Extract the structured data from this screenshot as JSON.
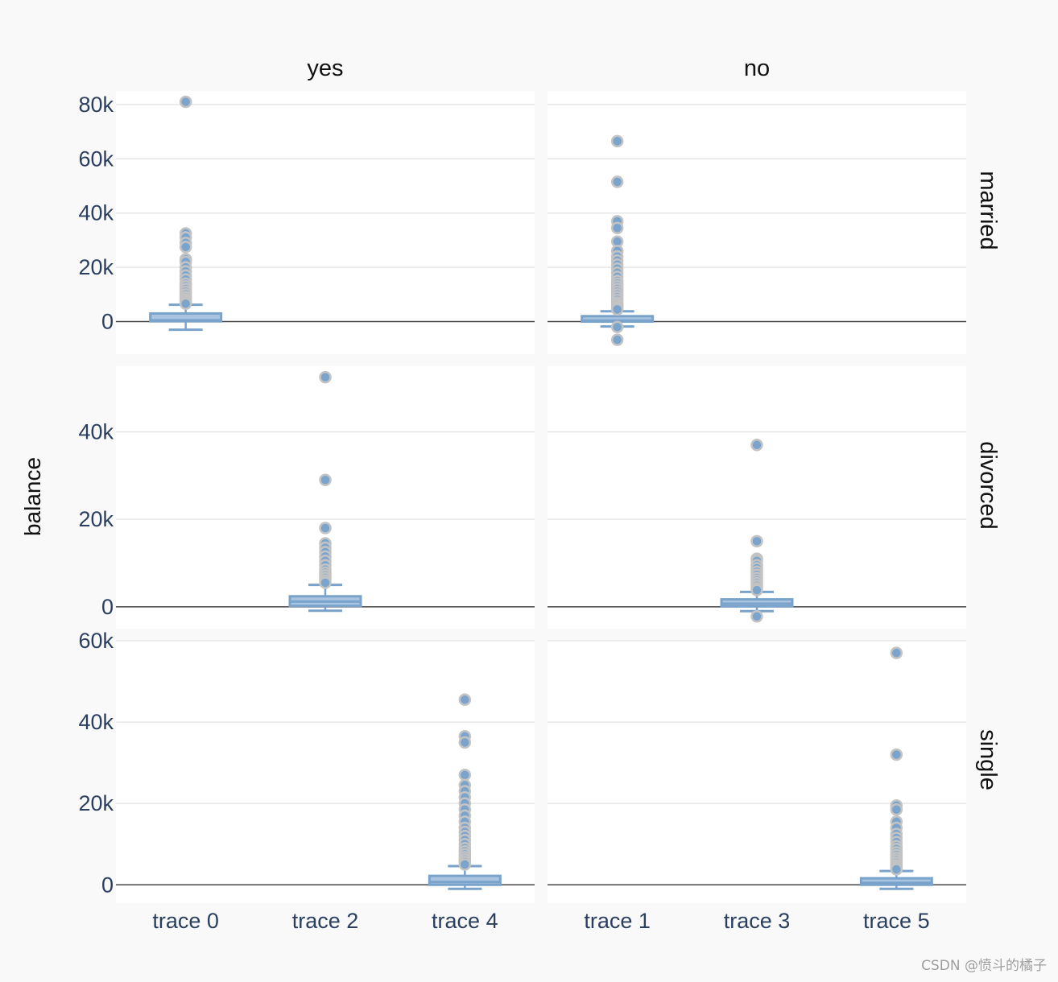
{
  "chart_data": {
    "type": "box",
    "ylabel": "balance",
    "col_labels": [
      "yes",
      "no"
    ],
    "row_labels": [
      "married",
      "divorced",
      "single"
    ],
    "colors": {
      "box_fill": "#a9c4e0",
      "box_line": "#7aa3cb",
      "outlier_fill": "#7ba4cd",
      "outlier_line": "#c3c3c3",
      "grid": "#e6e6e6",
      "zeroline": "#444444",
      "plot_bg": "#ffffff",
      "paper_bg": "#f9f9f9"
    },
    "rows": [
      {
        "name": "married",
        "ylim": [
          -12000,
          85000
        ],
        "ticks": [
          0,
          20000,
          40000,
          60000,
          80000
        ],
        "tick_labels": [
          "0",
          "20k",
          "40k",
          "60k",
          "80k"
        ]
      },
      {
        "name": "divorced",
        "ylim": [
          -5000,
          55000
        ],
        "ticks": [
          0,
          20000,
          40000
        ],
        "tick_labels": [
          "0",
          "20k",
          "40k"
        ]
      },
      {
        "name": "single",
        "ylim": [
          -4500,
          60000
        ],
        "ticks": [
          0,
          20000,
          40000,
          60000
        ],
        "tick_labels": [
          "0",
          "20k",
          "40k",
          "60k"
        ]
      }
    ],
    "columns": [
      {
        "name": "yes",
        "categories": [
          "trace 0",
          "trace 2",
          "trace 4"
        ]
      },
      {
        "name": "no",
        "categories": [
          "trace 1",
          "trace 3",
          "trace 5"
        ]
      }
    ],
    "series": [
      {
        "name": "trace 0",
        "row": 0,
        "col": 0,
        "pos": 0,
        "lower_fence": -3000,
        "q1": 100,
        "median": 500,
        "q3": 3000,
        "upper_fence": 6200,
        "outliers": [
          81000,
          32500,
          31000,
          29000,
          27500,
          23000,
          22000,
          20000,
          18500,
          17000,
          15500,
          14000,
          13000,
          12000,
          11000,
          10000,
          9000,
          8200,
          7500,
          7000,
          6600
        ]
      },
      {
        "name": "trace 1",
        "row": 0,
        "col": 1,
        "pos": 0,
        "lower_fence": -1800,
        "q1": 0,
        "median": 400,
        "q3": 2000,
        "upper_fence": 3800,
        "outliers": [
          66500,
          51500,
          37000,
          34500,
          29500,
          26000,
          24000,
          22500,
          21000,
          19500,
          18000,
          16500,
          15000,
          14000,
          13000,
          12000,
          11000,
          10000,
          9000,
          8000,
          7000,
          6200,
          5500,
          5000,
          4500,
          -2000,
          -6700
        ]
      },
      {
        "name": "trace 2",
        "row": 1,
        "col": 0,
        "pos": 1,
        "lower_fence": -900,
        "q1": 200,
        "median": 1200,
        "q3": 2400,
        "upper_fence": 5000,
        "outliers": [
          52500,
          29000,
          18000,
          14500,
          13500,
          12500,
          11500,
          10500,
          9500,
          8500,
          7800,
          7200,
          6600,
          6000,
          5500
        ]
      },
      {
        "name": "trace 3",
        "row": 1,
        "col": 1,
        "pos": 1,
        "lower_fence": -1000,
        "q1": 100,
        "median": 700,
        "q3": 1700,
        "upper_fence": 3400,
        "outliers": [
          37000,
          15000,
          11000,
          10500,
          9500,
          8800,
          8000,
          7300,
          6600,
          6000,
          5400,
          4800,
          4200,
          3800,
          -2200
        ]
      },
      {
        "name": "trace 4",
        "row": 2,
        "col": 0,
        "pos": 2,
        "lower_fence": -1000,
        "q1": 0,
        "median": 700,
        "q3": 2200,
        "upper_fence": 4600,
        "outliers": [
          45500,
          36500,
          35000,
          27000,
          24500,
          23000,
          21500,
          20000,
          18500,
          17000,
          15500,
          14000,
          13000,
          12000,
          11000,
          10000,
          9000,
          8200,
          7500,
          6800,
          6200,
          5600,
          5000
        ]
      },
      {
        "name": "trace 5",
        "row": 2,
        "col": 1,
        "pos": 2,
        "lower_fence": -1000,
        "q1": 0,
        "median": 500,
        "q3": 1600,
        "upper_fence": 3400,
        "outliers": [
          57000,
          32000,
          19500,
          18500,
          15500,
          14000,
          12500,
          11500,
          10500,
          9500,
          8800,
          8000,
          7300,
          6600,
          6000,
          5400,
          4800,
          4300,
          3800
        ]
      }
    ]
  },
  "watermark": "CSDN @愤斗的橘子"
}
